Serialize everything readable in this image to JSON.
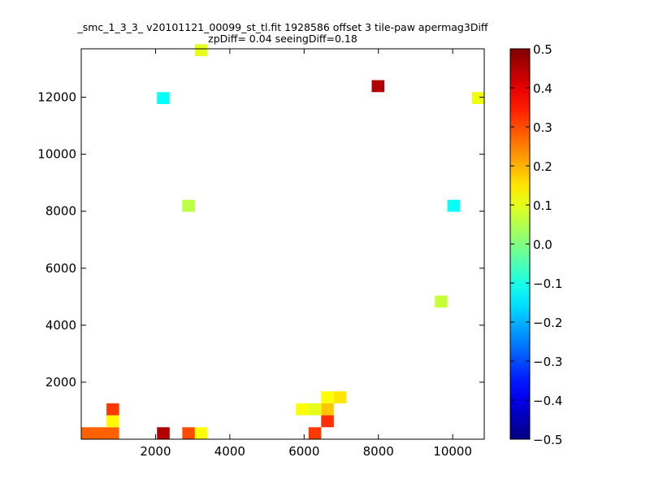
{
  "chart_data": {
    "type": "heatmap",
    "title_line1": "_smc_1_3_3_ v20101121_00099_st_tl.fit 1928586 offset 3 tile-paw apermag3Diff",
    "title_line2": "zpDiff= 0.04 seeingDiff=0.18",
    "xlabel": "",
    "ylabel": "",
    "xlim": [
      0,
      10850
    ],
    "ylim": [
      0,
      13700
    ],
    "xticks": [
      2000,
      4000,
      6000,
      8000,
      10000
    ],
    "yticks": [
      2000,
      4000,
      6000,
      8000,
      10000,
      12000
    ],
    "cell_size": [
      340,
      420
    ],
    "colorbar": {
      "colormap": "jet",
      "range": [
        -0.5,
        0.5
      ],
      "ticks": [
        0.5,
        0.4,
        0.3,
        0.2,
        0.1,
        0.0,
        -0.1,
        -0.2,
        -0.3,
        -0.4,
        -0.5
      ],
      "tick_labels": [
        "0.5",
        "0.4",
        "0.3",
        "0.2",
        "0.1",
        "0.0",
        "−0.1",
        "−0.2",
        "−0.3",
        "−0.4",
        "−0.5"
      ]
    },
    "cells": [
      {
        "x": 0,
        "y": 0,
        "v": 0.28
      },
      {
        "x": 340,
        "y": 0,
        "v": 0.28
      },
      {
        "x": 680,
        "y": 0,
        "v": 0.28
      },
      {
        "x": 680,
        "y": 420,
        "v": 0.13
      },
      {
        "x": 680,
        "y": 840,
        "v": 0.32
      },
      {
        "x": 2040,
        "y": 0,
        "v": 0.45
      },
      {
        "x": 2720,
        "y": 0,
        "v": 0.3
      },
      {
        "x": 3060,
        "y": 0,
        "v": 0.12
      },
      {
        "x": 6120,
        "y": 0,
        "v": 0.32
      },
      {
        "x": 6460,
        "y": 420,
        "v": 0.33
      },
      {
        "x": 6460,
        "y": 840,
        "v": 0.18
      },
      {
        "x": 6800,
        "y": 1260,
        "v": 0.15
      },
      {
        "x": 6460,
        "y": 1260,
        "v": 0.12
      },
      {
        "x": 5780,
        "y": 840,
        "v": 0.12
      },
      {
        "x": 6120,
        "y": 840,
        "v": 0.1
      },
      {
        "x": 7820,
        "y": 12180,
        "v": 0.45
      },
      {
        "x": 2040,
        "y": 11760,
        "v": -0.12
      },
      {
        "x": 9860,
        "y": 7980,
        "v": -0.12
      },
      {
        "x": 10520,
        "y": 11760,
        "v": 0.11
      },
      {
        "x": 9520,
        "y": 4620,
        "v": 0.07
      },
      {
        "x": 2720,
        "y": 7980,
        "v": 0.06
      },
      {
        "x": 3060,
        "y": 13440,
        "v": 0.1
      }
    ]
  }
}
